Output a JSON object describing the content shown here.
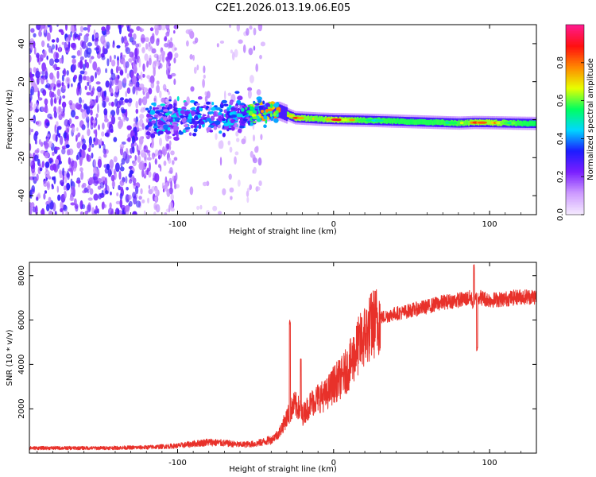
{
  "chart_data": [
    {
      "type": "heatmap",
      "title": "C2E1.2026.013.19.06.E05",
      "xlabel": "Height of straight line (km)",
      "ylabel": "Frequency (Hz)",
      "xlim": [
        -195,
        130
      ],
      "ylim": [
        -50,
        50
      ],
      "xticks": [
        -100,
        0,
        100
      ],
      "xtick_labels": [
        "-100",
        "0",
        "100"
      ],
      "yticks": [
        -40,
        -20,
        0,
        20,
        40
      ],
      "ytick_labels": [
        "-40",
        "-20",
        "0",
        "20",
        "40"
      ],
      "colorbar": {
        "label": "Normalized spectral amplitude",
        "range": [
          0,
          1
        ],
        "ticks": [
          0.0,
          0.2,
          0.4,
          0.6,
          0.8
        ],
        "tick_labels": [
          "0.0",
          "0.2",
          "0.4",
          "0.6",
          "0.8"
        ],
        "colors": [
          "#f4e8ff",
          "#cc99ff",
          "#7a1fff",
          "#1c1cff",
          "#00d8ff",
          "#00ff60",
          "#e8ff00",
          "#ff8800",
          "#ff1010",
          "#ff1a8c"
        ]
      },
      "ridge": {
        "x": [
          -120,
          -100,
          -80,
          -60,
          -45,
          -35,
          -25,
          -10,
          0,
          20,
          40,
          60,
          80,
          90,
          100,
          120,
          130
        ],
        "freq": [
          0,
          0.8,
          1.5,
          2.5,
          4,
          4.5,
          1,
          0.3,
          0,
          -0.3,
          -0.8,
          -1.3,
          -1.8,
          -1.5,
          -1.6,
          -1.9,
          -2
        ],
        "peak_amplitude": [
          0.3,
          0.35,
          0.3,
          0.35,
          0.55,
          0.65,
          0.9,
          0.7,
          1.0,
          0.6,
          0.5,
          0.5,
          0.6,
          0.9,
          0.95,
          0.5,
          0.45
        ]
      }
    },
    {
      "type": "line",
      "title": "",
      "xlabel": "Height of straight line (km)",
      "ylabel": "SNR (10 * v/v)",
      "xlim": [
        -195,
        130
      ],
      "ylim": [
        0,
        8600
      ],
      "xticks": [
        -100,
        0,
        100
      ],
      "xtick_labels": [
        "-100",
        "0",
        "100"
      ],
      "yticks": [
        2000,
        4000,
        6000,
        8000
      ],
      "ytick_labels": [
        "2000",
        "4000",
        "6000",
        "8000"
      ],
      "line_color": "#e8312a",
      "series": [
        {
          "name": "SNR",
          "x": [
            -195,
            -150,
            -120,
            -100,
            -90,
            -80,
            -70,
            -60,
            -50,
            -40,
            -35,
            -30,
            -25,
            -22,
            -20,
            -15,
            -10,
            -5,
            0,
            5,
            10,
            15,
            20,
            25,
            30,
            35,
            40,
            45,
            50,
            60,
            70,
            80,
            88,
            90,
            92,
            95,
            100,
            110,
            120,
            130
          ],
          "y": [
            230,
            230,
            260,
            330,
            420,
            500,
            450,
            380,
            420,
            600,
            900,
            1600,
            2200,
            2000,
            1700,
            2200,
            2500,
            2600,
            3100,
            3400,
            3900,
            4700,
            5300,
            5800,
            6100,
            6200,
            6300,
            6350,
            6450,
            6600,
            6800,
            6900,
            7000,
            6700,
            7100,
            7000,
            6900,
            6950,
            7050,
            7050
          ]
        }
      ],
      "spikes": [
        {
          "x": -28,
          "y": 5900
        },
        {
          "x": -21,
          "y": 4200
        },
        {
          "x": 90,
          "y": 8400
        },
        {
          "x": 92,
          "y": 4700
        }
      ]
    }
  ]
}
